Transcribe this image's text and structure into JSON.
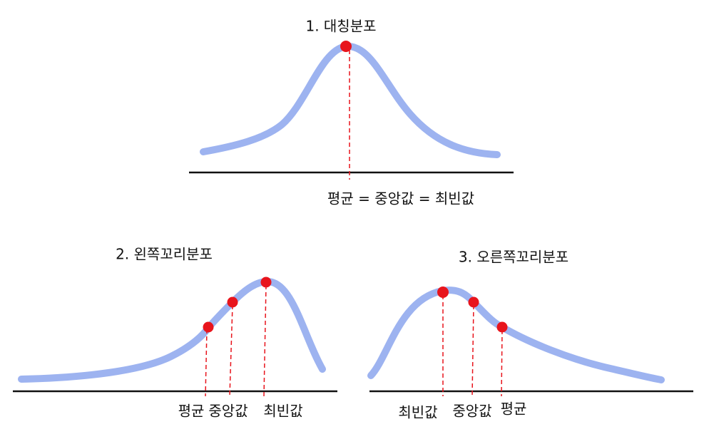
{
  "panels": [
    {
      "title": "1. 대칭분포",
      "labels": [
        "평균 = 중앙값 = 최빈값"
      ]
    },
    {
      "title": "2. 왼쪽꼬리분포",
      "labels": [
        "평균",
        "중앙값",
        "최빈값"
      ]
    },
    {
      "title": "3. 오른쪽꼬리분포",
      "labels": [
        "최빈값",
        "중앙값",
        "평균"
      ]
    }
  ]
}
